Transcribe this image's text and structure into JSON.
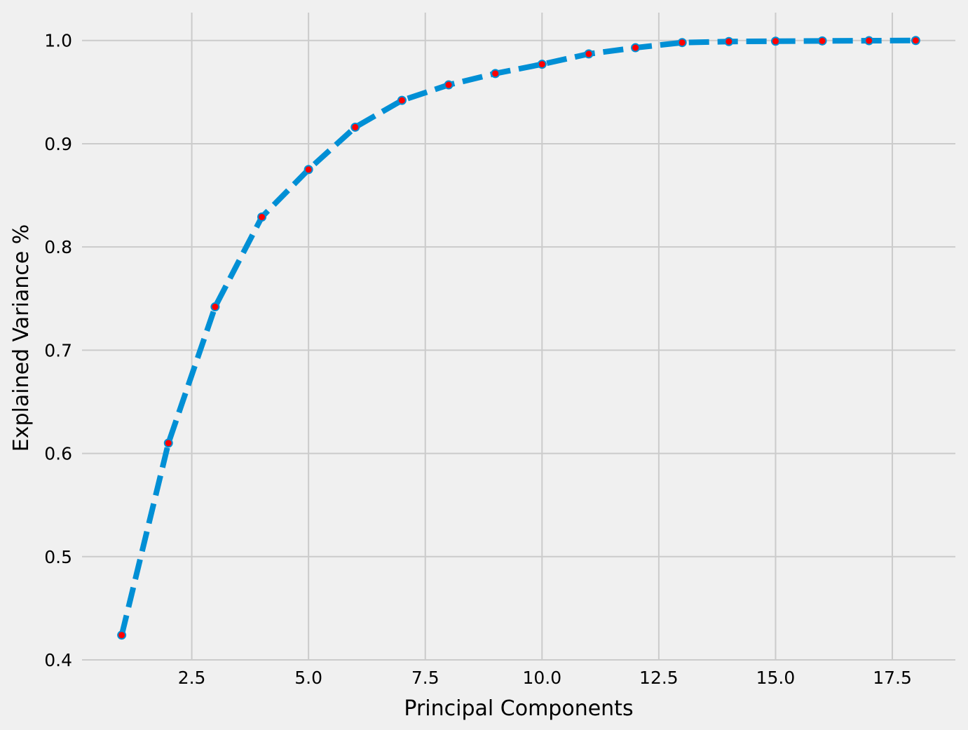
{
  "chart_data": {
    "type": "line",
    "title": "",
    "xlabel": "Principal Components",
    "ylabel": "Explained Variance %",
    "xlim": [
      0.15,
      18.85
    ],
    "ylim": [
      0.4,
      1.027
    ],
    "grid": true,
    "x_ticks": [
      2.5,
      5.0,
      7.5,
      10.0,
      12.5,
      15.0,
      17.5
    ],
    "x_tick_labels": [
      "2.5",
      "5.0",
      "7.5",
      "10.0",
      "12.5",
      "15.0",
      "17.5"
    ],
    "y_ticks": [
      0.4,
      0.5,
      0.6,
      0.7,
      0.8,
      0.9,
      1.0
    ],
    "y_tick_labels": [
      "0.4",
      "0.5",
      "0.6",
      "0.7",
      "0.8",
      "0.9",
      "1.0"
    ],
    "series": [
      {
        "x": [
          1,
          2,
          3,
          4,
          5,
          6,
          7,
          8,
          9,
          10,
          11,
          12,
          13,
          14,
          15,
          16,
          17,
          18
        ],
        "values": [
          0.424,
          0.61,
          0.742,
          0.829,
          0.875,
          0.916,
          0.942,
          0.957,
          0.968,
          0.977,
          0.987,
          0.993,
          0.998,
          0.999,
          0.9993,
          0.9996,
          0.9998,
          1.0
        ],
        "line_style": "dashed",
        "line_color": "#008fd5",
        "marker": "circle",
        "marker_face_color": "#ff0000"
      }
    ]
  },
  "colors": {
    "background": "#f0f0f0",
    "grid": "#cbcbcb",
    "line": "#008fd5",
    "marker": "#ff0000"
  }
}
